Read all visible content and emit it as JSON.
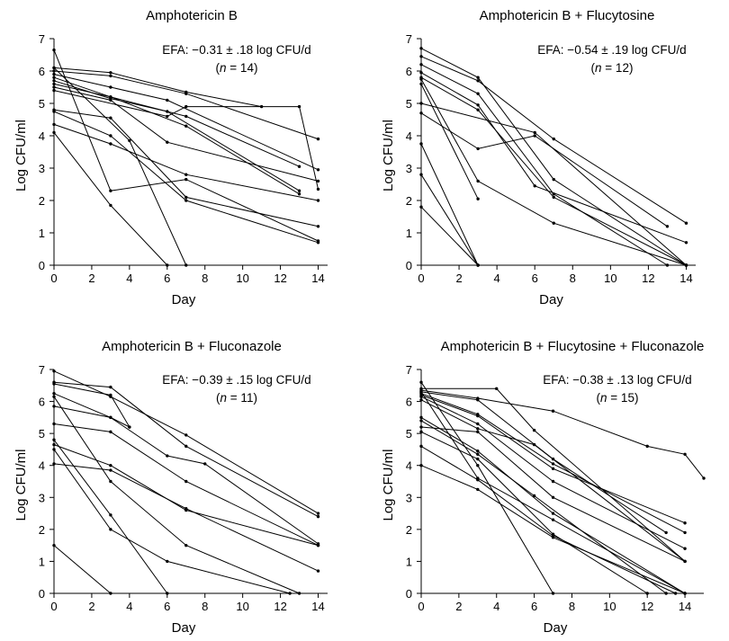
{
  "chart_data": [
    {
      "type": "line",
      "title": "Amphotericin B",
      "annotation": {
        "line1_prefix": "EFA: −0.31 ",
        "pm": "±",
        "line1_suffix": " .18 log CFU/d",
        "n_open": "(",
        "n_letter": "n",
        "n_close": " = 14)"
      },
      "xlabel": "Day",
      "ylabel": "Log CFU/ml",
      "xlim": [
        0,
        14.5
      ],
      "ylim": [
        0,
        7
      ],
      "x_ticks": [
        0,
        2,
        4,
        6,
        8,
        10,
        12,
        14
      ],
      "y_ticks": [
        0,
        1,
        2,
        3,
        4,
        5,
        6,
        7
      ],
      "series": [
        {
          "x": [
            0,
            3,
            7,
            11
          ],
          "y": [
            6.1,
            5.95,
            5.35,
            4.9
          ]
        },
        {
          "x": [
            0,
            3,
            7,
            14
          ],
          "y": [
            6.0,
            5.85,
            5.3,
            3.9
          ]
        },
        {
          "x": [
            0,
            3,
            6,
            14
          ],
          "y": [
            5.9,
            5.5,
            5.1,
            2.95
          ]
        },
        {
          "x": [
            0,
            3,
            7,
            13
          ],
          "y": [
            5.8,
            5.2,
            4.6,
            3.05
          ]
        },
        {
          "x": [
            0,
            3,
            6,
            13
          ],
          "y": [
            5.7,
            5.15,
            4.75,
            2.3
          ]
        },
        {
          "x": [
            0,
            3,
            7,
            13
          ],
          "y": [
            5.6,
            5.2,
            4.3,
            2.2
          ]
        },
        {
          "x": [
            0,
            3,
            6,
            14
          ],
          "y": [
            5.5,
            5.1,
            3.8,
            2.6
          ]
        },
        {
          "x": [
            0,
            6,
            7,
            13,
            14
          ],
          "y": [
            5.4,
            4.6,
            4.9,
            4.9,
            2.35
          ]
        },
        {
          "x": [
            0,
            3,
            7,
            14
          ],
          "y": [
            4.8,
            4.55,
            2.1,
            1.2
          ]
        },
        {
          "x": [
            0,
            3,
            7,
            14
          ],
          "y": [
            4.75,
            4.0,
            2.0,
            0.7
          ]
        },
        {
          "x": [
            0,
            3,
            7,
            14
          ],
          "y": [
            4.35,
            3.75,
            2.8,
            2.0
          ]
        },
        {
          "x": [
            0,
            3,
            7,
            14
          ],
          "y": [
            6.65,
            2.3,
            2.65,
            0.75
          ]
        },
        {
          "x": [
            0,
            3,
            6
          ],
          "y": [
            4.1,
            1.85,
            0
          ]
        },
        {
          "x": [
            0,
            4,
            7
          ],
          "y": [
            6.1,
            3.85,
            0
          ]
        }
      ]
    },
    {
      "type": "line",
      "title": "Amphotericin B + Flucytosine",
      "annotation": {
        "line1_prefix": "EFA: −0.54 ",
        "pm": "±",
        "line1_suffix": " .19 log CFU/d",
        "n_open": "(",
        "n_letter": "n",
        "n_close": " = 12)"
      },
      "xlabel": "Day",
      "ylabel": "Log CFU/ml",
      "xlim": [
        0,
        14.5
      ],
      "ylim": [
        0,
        7
      ],
      "x_ticks": [
        0,
        2,
        4,
        6,
        8,
        10,
        12,
        14
      ],
      "y_ticks": [
        0,
        1,
        2,
        3,
        4,
        5,
        6,
        7
      ],
      "series": [
        {
          "x": [
            0,
            3,
            7,
            14
          ],
          "y": [
            6.7,
            5.8,
            2.65,
            0
          ]
        },
        {
          "x": [
            0,
            3,
            7,
            14
          ],
          "y": [
            6.45,
            5.7,
            3.9,
            1.3
          ]
        },
        {
          "x": [
            0,
            3,
            7,
            13
          ],
          "y": [
            6.2,
            5.3,
            2.2,
            0
          ]
        },
        {
          "x": [
            0,
            3,
            6,
            14
          ],
          "y": [
            5.95,
            4.95,
            2.45,
            0.7
          ]
        },
        {
          "x": [
            0,
            3,
            7,
            14
          ],
          "y": [
            5.8,
            4.8,
            2.1,
            0
          ]
        },
        {
          "x": [
            0,
            3
          ],
          "y": [
            5.6,
            2.05
          ]
        },
        {
          "x": [
            0,
            6,
            14
          ],
          "y": [
            5.0,
            4.1,
            0
          ]
        },
        {
          "x": [
            0,
            3,
            6,
            13
          ],
          "y": [
            4.7,
            3.6,
            4.0,
            1.2
          ]
        },
        {
          "x": [
            0,
            3,
            7,
            14
          ],
          "y": [
            5.75,
            2.6,
            1.3,
            0
          ]
        },
        {
          "x": [
            0,
            3
          ],
          "y": [
            3.75,
            0
          ]
        },
        {
          "x": [
            0,
            3
          ],
          "y": [
            2.8,
            0
          ]
        },
        {
          "x": [
            0,
            3
          ],
          "y": [
            1.8,
            0
          ]
        }
      ]
    },
    {
      "type": "line",
      "title": "Amphotericin B + Fluconazole",
      "annotation": {
        "line1_prefix": "EFA: −0.39 ",
        "pm": "±",
        "line1_suffix": " .15 log CFU/d",
        "n_open": "(",
        "n_letter": "n",
        "n_close": " = 11)"
      },
      "xlabel": "Day",
      "ylabel": "Log CFU/ml",
      "xlim": [
        0,
        14.5
      ],
      "ylim": [
        0,
        7
      ],
      "x_ticks": [
        0,
        2,
        4,
        6,
        8,
        10,
        12,
        14
      ],
      "y_ticks": [
        0,
        1,
        2,
        3,
        4,
        5,
        6,
        7
      ],
      "series": [
        {
          "x": [
            0,
            3,
            7,
            14
          ],
          "y": [
            6.95,
            6.15,
            4.95,
            2.5
          ]
        },
        {
          "x": [
            0,
            3,
            7,
            14
          ],
          "y": [
            6.6,
            6.45,
            4.6,
            2.4
          ]
        },
        {
          "x": [
            0,
            3,
            4
          ],
          "y": [
            6.55,
            6.2,
            5.2
          ]
        },
        {
          "x": [
            0,
            3,
            6,
            8,
            14
          ],
          "y": [
            6.25,
            5.5,
            4.3,
            4.05,
            1.55
          ]
        },
        {
          "x": [
            0,
            3,
            4
          ],
          "y": [
            5.85,
            5.5,
            5.2
          ]
        },
        {
          "x": [
            0,
            3,
            7,
            14
          ],
          "y": [
            5.3,
            5.05,
            3.5,
            1.5
          ]
        },
        {
          "x": [
            0,
            3,
            7,
            14
          ],
          "y": [
            4.65,
            4.0,
            2.6,
            1.5
          ]
        },
        {
          "x": [
            0,
            3,
            7,
            14
          ],
          "y": [
            4.05,
            3.85,
            2.65,
            0.7
          ]
        },
        {
          "x": [
            0,
            3,
            7,
            13
          ],
          "y": [
            6.15,
            3.5,
            1.5,
            0
          ]
        },
        {
          "x": [
            0,
            3,
            6
          ],
          "y": [
            4.8,
            2.45,
            0
          ]
        },
        {
          "x": [
            0,
            3,
            6,
            12.5
          ],
          "y": [
            4.5,
            2.0,
            1.0,
            0
          ]
        },
        {
          "x": [
            0,
            3
          ],
          "y": [
            1.5,
            0
          ]
        }
      ]
    },
    {
      "type": "line",
      "title": "Amphotericin B + Flucytosine + Fluconazole",
      "annotation": {
        "line1_prefix": "EFA: −0.38 ",
        "pm": "±",
        "line1_suffix": " .13 log CFU/d",
        "n_open": "(",
        "n_letter": "n",
        "n_close": " = 15)"
      },
      "xlabel": "Day",
      "ylabel": "Log CFU/ml",
      "xlim": [
        0,
        15
      ],
      "ylim": [
        0,
        7
      ],
      "x_ticks": [
        0,
        2,
        4,
        6,
        8,
        10,
        12,
        14
      ],
      "y_ticks": [
        0,
        1,
        2,
        3,
        4,
        5,
        6,
        7
      ],
      "series": [
        {
          "x": [
            0,
            4,
            6,
            14
          ],
          "y": [
            6.4,
            6.4,
            5.1,
            1.0
          ]
        },
        {
          "x": [
            0,
            3,
            7,
            12,
            14,
            15
          ],
          "y": [
            6.35,
            6.1,
            5.7,
            4.6,
            4.35,
            3.6
          ]
        },
        {
          "x": [
            0,
            3,
            7,
            13
          ],
          "y": [
            6.3,
            6.05,
            4.2,
            1.9
          ]
        },
        {
          "x": [
            0,
            3,
            7,
            14
          ],
          "y": [
            6.25,
            5.6,
            4.05,
            1.9
          ]
        },
        {
          "x": [
            0,
            3,
            7,
            14
          ],
          "y": [
            6.2,
            5.55,
            3.9,
            2.2
          ]
        },
        {
          "x": [
            0,
            3,
            7,
            14
          ],
          "y": [
            6.15,
            5.3,
            3.5,
            1.4
          ]
        },
        {
          "x": [
            0,
            3,
            6,
            14
          ],
          "y": [
            6.05,
            5.15,
            4.65,
            1.0
          ]
        },
        {
          "x": [
            0,
            3,
            7,
            14
          ],
          "y": [
            5.5,
            4.45,
            2.5,
            0
          ]
        },
        {
          "x": [
            0,
            3,
            6,
            13
          ],
          "y": [
            5.4,
            4.35,
            3.05,
            0
          ]
        },
        {
          "x": [
            0,
            3,
            7,
            14
          ],
          "y": [
            5.2,
            5.05,
            3.0,
            1.0
          ]
        },
        {
          "x": [
            0,
            3,
            7,
            12
          ],
          "y": [
            5.05,
            4.2,
            1.85,
            0
          ]
        },
        {
          "x": [
            0,
            3,
            7,
            13.5
          ],
          "y": [
            4.6,
            3.55,
            1.8,
            0
          ]
        },
        {
          "x": [
            0,
            3,
            7,
            14
          ],
          "y": [
            4.0,
            3.25,
            1.75,
            0
          ]
        },
        {
          "x": [
            0,
            3,
            7
          ],
          "y": [
            6.6,
            4.0,
            0
          ]
        },
        {
          "x": [
            0,
            3,
            7,
            14
          ],
          "y": [
            6.3,
            3.6,
            2.3,
            0
          ]
        }
      ]
    }
  ]
}
